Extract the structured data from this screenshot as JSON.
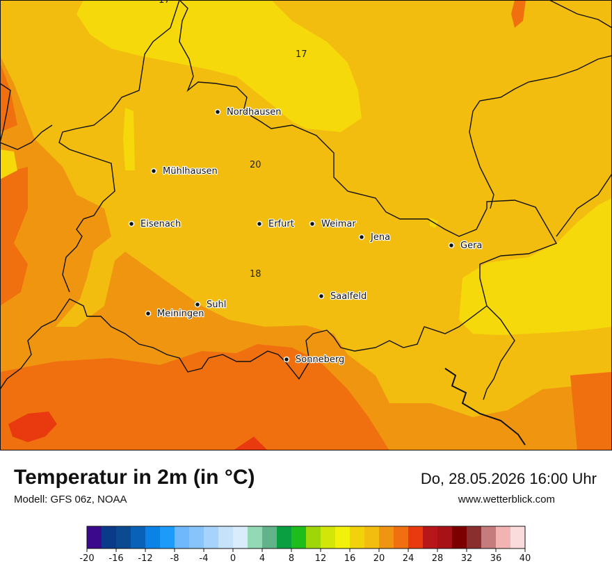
{
  "map": {
    "cities": [
      {
        "name": "Nordhausen"
      },
      {
        "name": "Mühlhausen"
      },
      {
        "name": "Eisenach"
      },
      {
        "name": "Erfurt"
      },
      {
        "name": "Weimar"
      },
      {
        "name": "Jena"
      },
      {
        "name": "Gera"
      },
      {
        "name": "Saalfeld"
      },
      {
        "name": "Suhl"
      },
      {
        "name": "Meiningen"
      },
      {
        "name": "Sonneberg"
      }
    ],
    "contour_labels": [
      "17",
      "17",
      "20",
      "18"
    ],
    "colors": {
      "band_16_18": "#f5d90a",
      "band_18_20": "#f2bd0f",
      "band_20_22": "#f09510",
      "band_22_24": "#f07010",
      "band_24_26": "#e83a0e",
      "border": "#111111"
    }
  },
  "footer": {
    "title": "Temperatur in 2m (in °C)",
    "model": "Modell: GFS 06z, NOAA",
    "datetime": "Do, 28.05.2026 16:00 Uhr",
    "website": "www.wetterblick.com"
  },
  "legend": {
    "colors": [
      "#3b0a8c",
      "#0b3a8a",
      "#0b4a91",
      "#0a62b8",
      "#0b82e6",
      "#1d9bfb",
      "#6fb8fb",
      "#86c4fb",
      "#a6d3fb",
      "#c6e2fb",
      "#d9ecfb",
      "#94d9b5",
      "#63b38a",
      "#0aa041",
      "#1dbe1c",
      "#9fd60a",
      "#d2e60a",
      "#f1f10b",
      "#f2d30b",
      "#f2bd0f",
      "#f09511",
      "#f07010",
      "#e83a0e",
      "#b8171a",
      "#a81217",
      "#7d0000",
      "#8a2e2e",
      "#c47c7c",
      "#f2b3b3",
      "#fadcdc"
    ],
    "ticks": [
      "-20",
      "-16",
      "-12",
      "-8",
      "-4",
      "0",
      "4",
      "8",
      "12",
      "16",
      "20",
      "24",
      "28",
      "32",
      "36",
      "40"
    ]
  }
}
